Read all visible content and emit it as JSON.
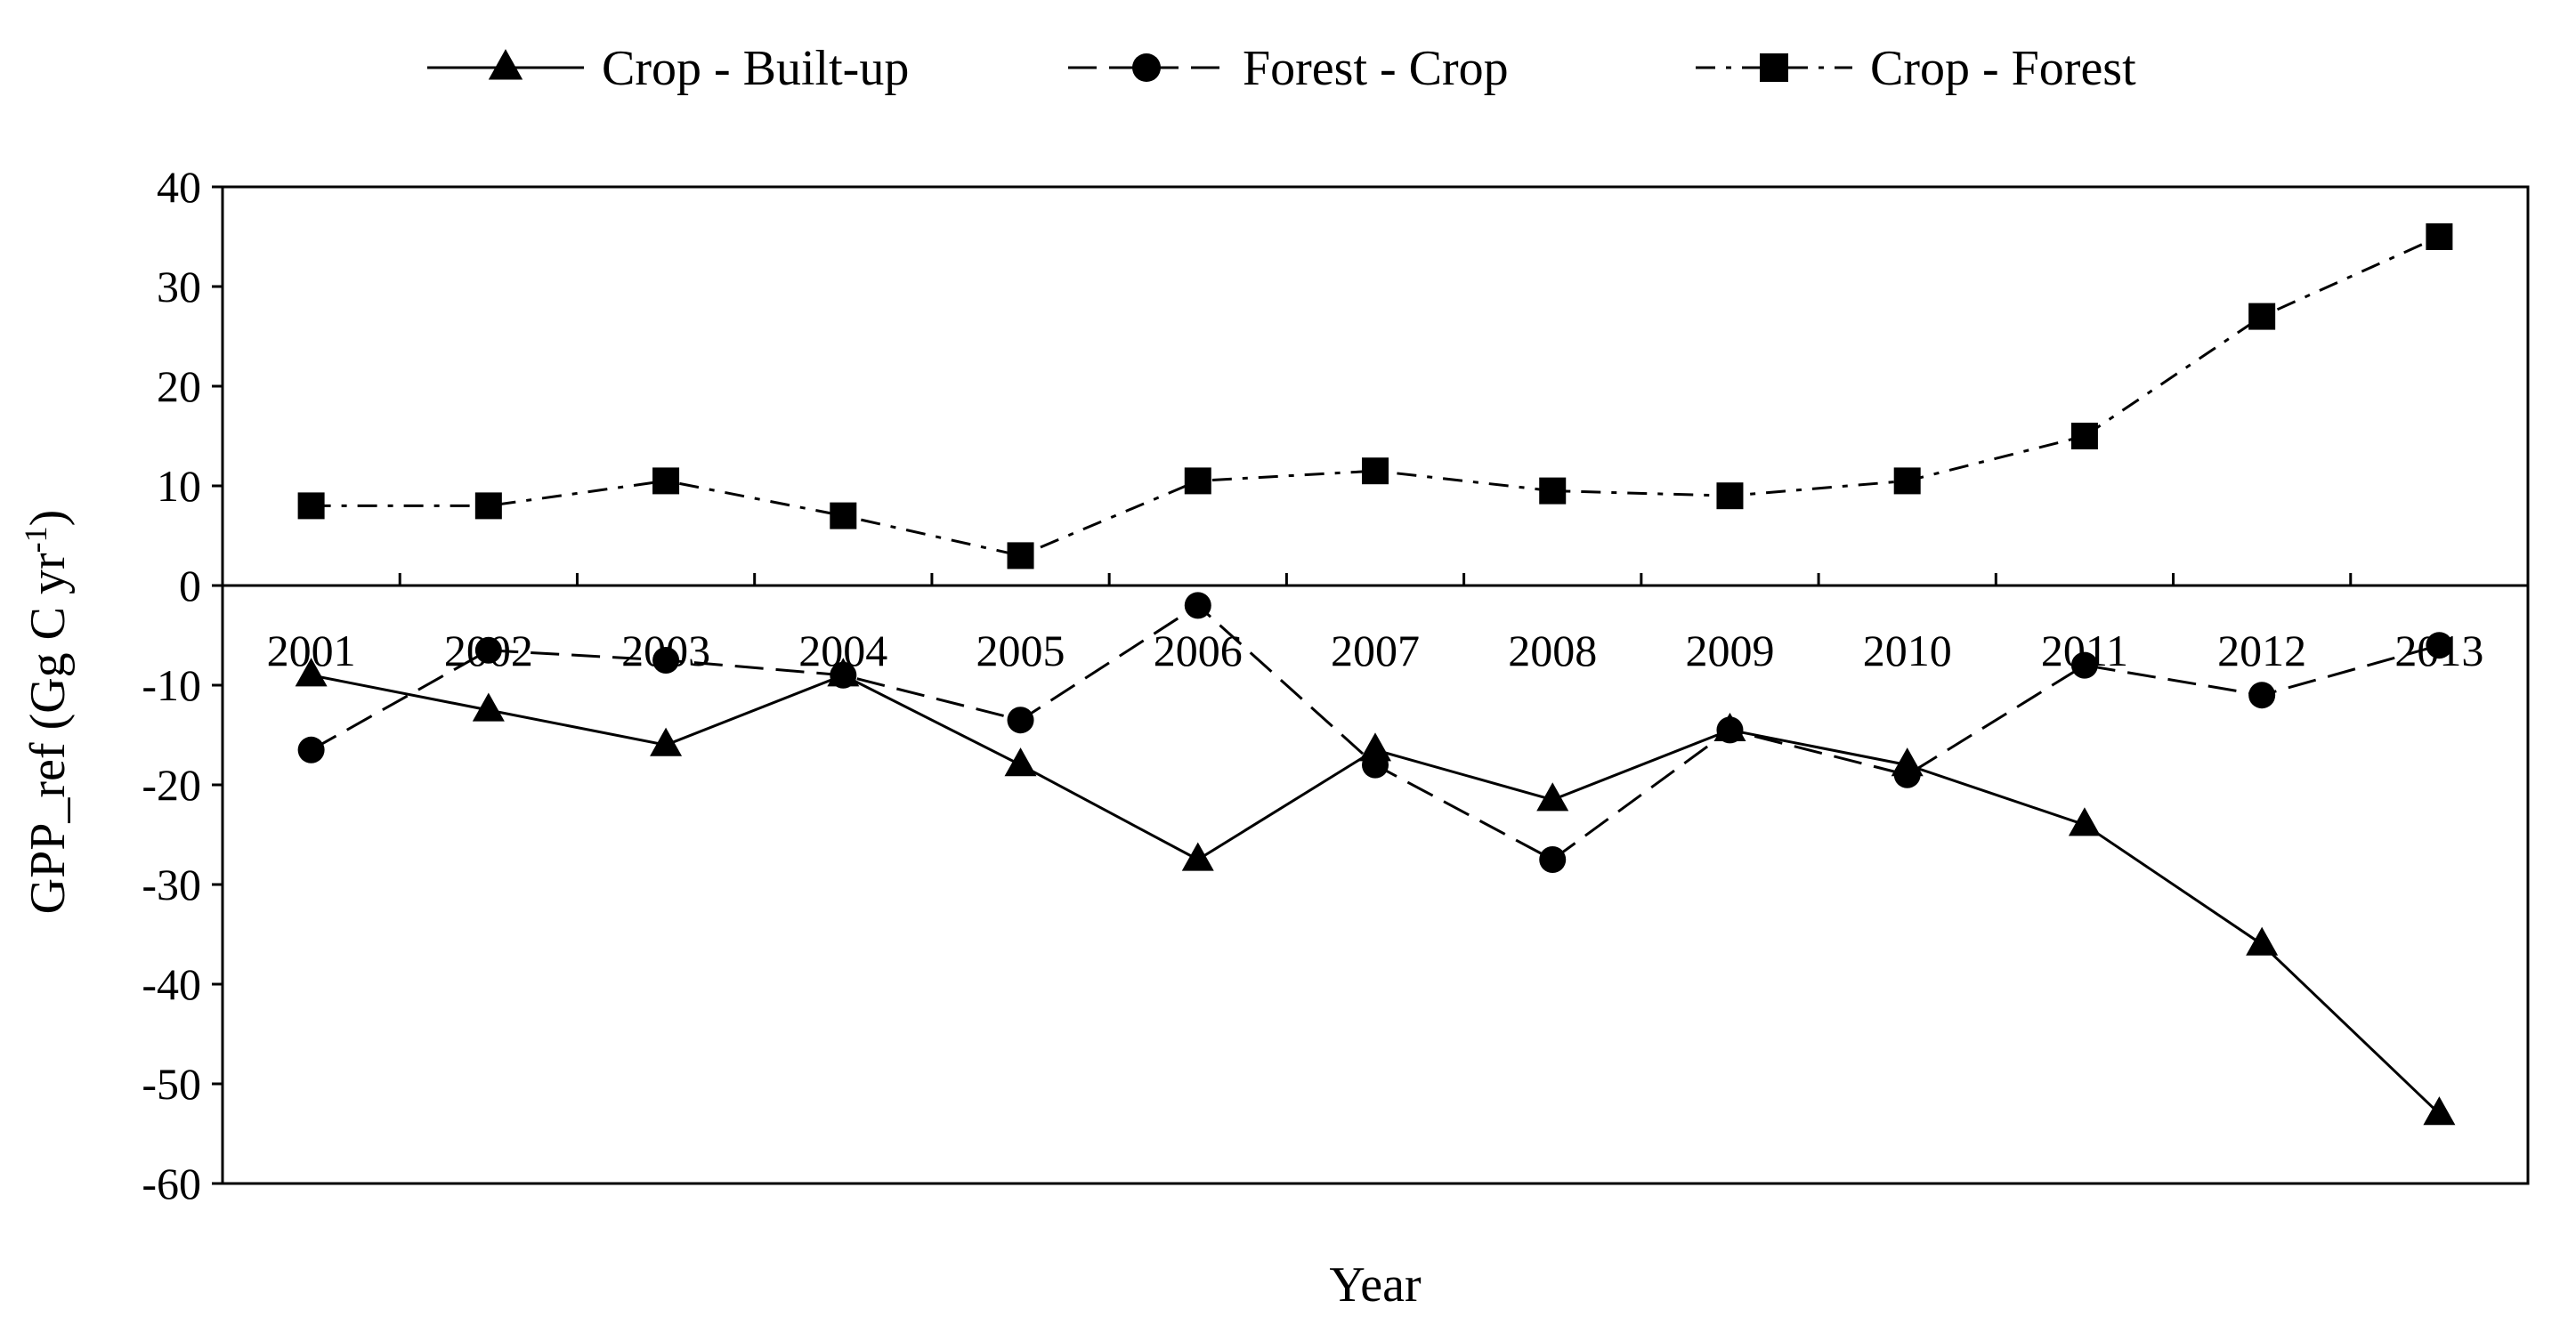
{
  "chart_data": {
    "type": "line",
    "title": "",
    "xlabel": "Year",
    "ylabel": "GPP_ref (Gg C yr",
    "ylabel_superscript": "-1",
    "ylabel_suffix": ")",
    "ylim": [
      -60,
      40
    ],
    "yticks": [
      40,
      30,
      20,
      10,
      0,
      -10,
      -20,
      -30,
      -40,
      -50,
      -60
    ],
    "categories": [
      "2001",
      "2002",
      "2003",
      "2004",
      "2005",
      "2006",
      "2007",
      "2008",
      "2009",
      "2010",
      "2011",
      "2012",
      "2013"
    ],
    "grid": false,
    "legend_position": "top",
    "series": [
      {
        "name": "Crop - Built-up",
        "marker": "triangle",
        "line_style": "solid",
        "values": [
          -9,
          -12.5,
          -16,
          -9,
          -18,
          -27.5,
          -16.5,
          -21.5,
          -14.5,
          -18,
          -24,
          -36,
          -53
        ]
      },
      {
        "name": "Forest - Crop",
        "marker": "circle",
        "line_style": "dashed",
        "values": [
          -16.5,
          -6.5,
          -7.5,
          -9,
          -13.5,
          -2,
          -18,
          -27.5,
          -14.5,
          -19,
          -8,
          -11,
          -6
        ]
      },
      {
        "name": "Crop - Forest",
        "marker": "square",
        "line_style": "dashdot",
        "values": [
          8,
          8,
          10.5,
          7,
          3,
          10.5,
          11.5,
          9.5,
          9,
          10.5,
          15,
          27,
          35
        ]
      }
    ]
  }
}
